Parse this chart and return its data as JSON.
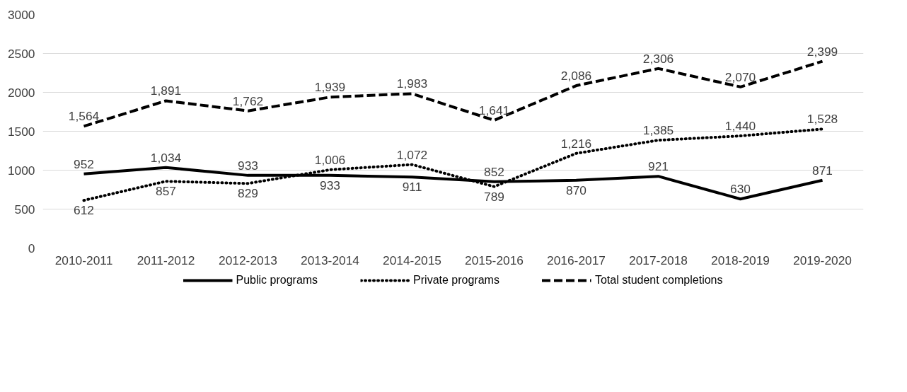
{
  "chart_data": {
    "type": "line",
    "categories": [
      "2010-2011",
      "2011-2012",
      "2012-2013",
      "2013-2014",
      "2014-2015",
      "2015-2016",
      "2016-2017",
      "2017-2018",
      "2018-2019",
      "2019-2020"
    ],
    "ylim": [
      0,
      3000
    ],
    "yticks": [
      0,
      500,
      1000,
      1500,
      2000,
      2500,
      3000
    ],
    "grid": "y",
    "legend": "bottom",
    "marker": "none",
    "series": [
      {
        "name": "Public programs",
        "color": "#000000",
        "line_style": "solid",
        "values": [
          952,
          1034,
          933,
          933,
          911,
          852,
          870,
          921,
          630,
          871
        ],
        "value_labels": [
          "952",
          "1,034",
          "933",
          "933",
          "911",
          "852",
          "870",
          "921",
          "630",
          "871"
        ]
      },
      {
        "name": "Private programs",
        "color": "#000000",
        "line_style": "dotted",
        "values": [
          612,
          857,
          829,
          1006,
          1072,
          789,
          1216,
          1385,
          1440,
          1528
        ],
        "value_labels": [
          "612",
          "857",
          "829",
          "1,006",
          "1,072",
          "789",
          "1,216",
          "1,385",
          "1,440",
          "1,528"
        ]
      },
      {
        "name": "Total student completions",
        "color": "#000000",
        "line_style": "dashed",
        "values": [
          1564,
          1891,
          1762,
          1939,
          1983,
          1641,
          2086,
          2306,
          2070,
          2399
        ],
        "value_labels": [
          "1,564",
          "1,891",
          "1,762",
          "1,939",
          "1,983",
          "1,641",
          "2,086",
          "2,306",
          "2,070",
          "2,399"
        ]
      }
    ]
  }
}
